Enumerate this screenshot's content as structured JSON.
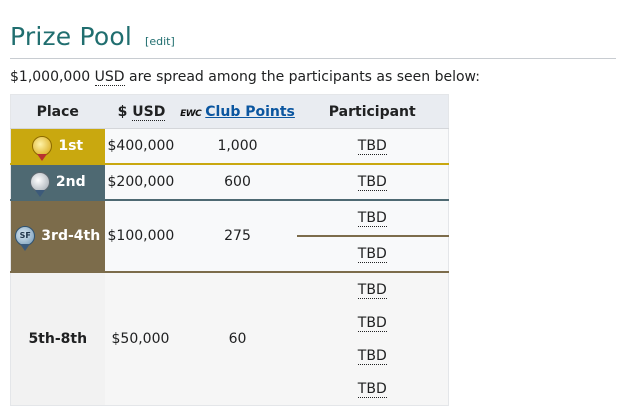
{
  "heading": {
    "title": "Prize Pool",
    "edit_label": "[edit]"
  },
  "intro": {
    "amount": "$1,000,000",
    "currency": "USD",
    "rest": " are spread among the participants as seen below:"
  },
  "table": {
    "headers": {
      "place": "Place",
      "usd_prefix": "$ ",
      "usd": "USD",
      "club_logo": "EWC",
      "club": "Club Points",
      "participant": "Participant"
    },
    "rows": [
      {
        "place": "1st",
        "usd": "$400,000",
        "points": "1,000",
        "participants": [
          "TBD"
        ]
      },
      {
        "place": "2nd",
        "usd": "$200,000",
        "points": "600",
        "participants": [
          "TBD"
        ]
      },
      {
        "place": "3rd-4th",
        "usd": "$100,000",
        "points": "275",
        "participants": [
          "TBD",
          "TBD"
        ]
      },
      {
        "place": "5th-8th",
        "usd": "$50,000",
        "points": "60",
        "participants": [
          "TBD",
          "TBD",
          "TBD",
          "TBD"
        ]
      }
    ],
    "medal_icon_sf": "SF",
    "colors": {
      "gold": "#c9a80f",
      "silver": "#4e6972",
      "bronze": "#7c6c4b",
      "header": "#e9ecf1",
      "title": "#206e6f"
    }
  }
}
